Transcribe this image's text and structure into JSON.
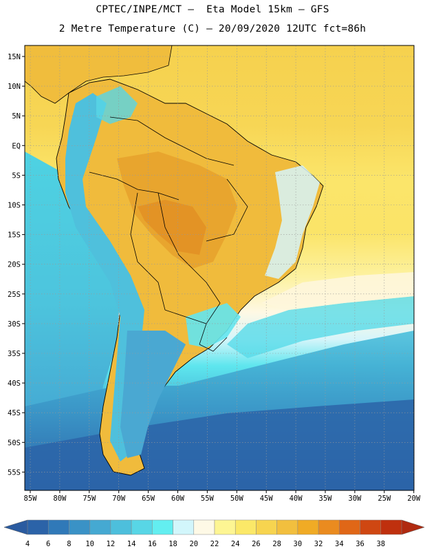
{
  "header": {
    "line1": "CPTEC/INPE/MCT –  Eta Model 15km – GFS",
    "line2": "2 Metre Temperature (C) – 20/09/2020 12UTC fct=86h"
  },
  "map": {
    "lat_labels": [
      "15N",
      "10N",
      "5N",
      "EQ",
      "5S",
      "10S",
      "15S",
      "20S",
      "25S",
      "30S",
      "35S",
      "40S",
      "45S",
      "50S",
      "55S"
    ],
    "lon_labels": [
      "85W",
      "80W",
      "75W",
      "70W",
      "65W",
      "60W",
      "55W",
      "50W",
      "45W",
      "40W",
      "35W",
      "30W",
      "25W",
      "20W"
    ],
    "colors": {
      "ocean_warm": "#f5d34f",
      "ocean_mid": "#fbe86e",
      "ocean_cool": "#4fd0e0",
      "land_hot": "#e9a42c",
      "land_warm": "#f0bf3f",
      "land_border": "#000000"
    }
  },
  "colorbar": {
    "labels": [
      "4",
      "6",
      "8",
      "10",
      "12",
      "14",
      "16",
      "18",
      "20",
      "22",
      "24",
      "26",
      "28",
      "30",
      "32",
      "34",
      "36",
      "38"
    ],
    "colors": [
      "#2b63a8",
      "#3079b8",
      "#3a92c6",
      "#45a9d2",
      "#4dbfdc",
      "#58d6e6",
      "#63eef0",
      "#d2f6fb",
      "#fef9e6",
      "#fdf593",
      "#fbe868",
      "#f7d44f",
      "#f2bf3e",
      "#f0ab25",
      "#ea8b1f",
      "#e06717",
      "#cf4712",
      "#bf300e"
    ],
    "low_arrow_color": "#2a5ba0",
    "high_arrow_color": "#b02a10"
  }
}
